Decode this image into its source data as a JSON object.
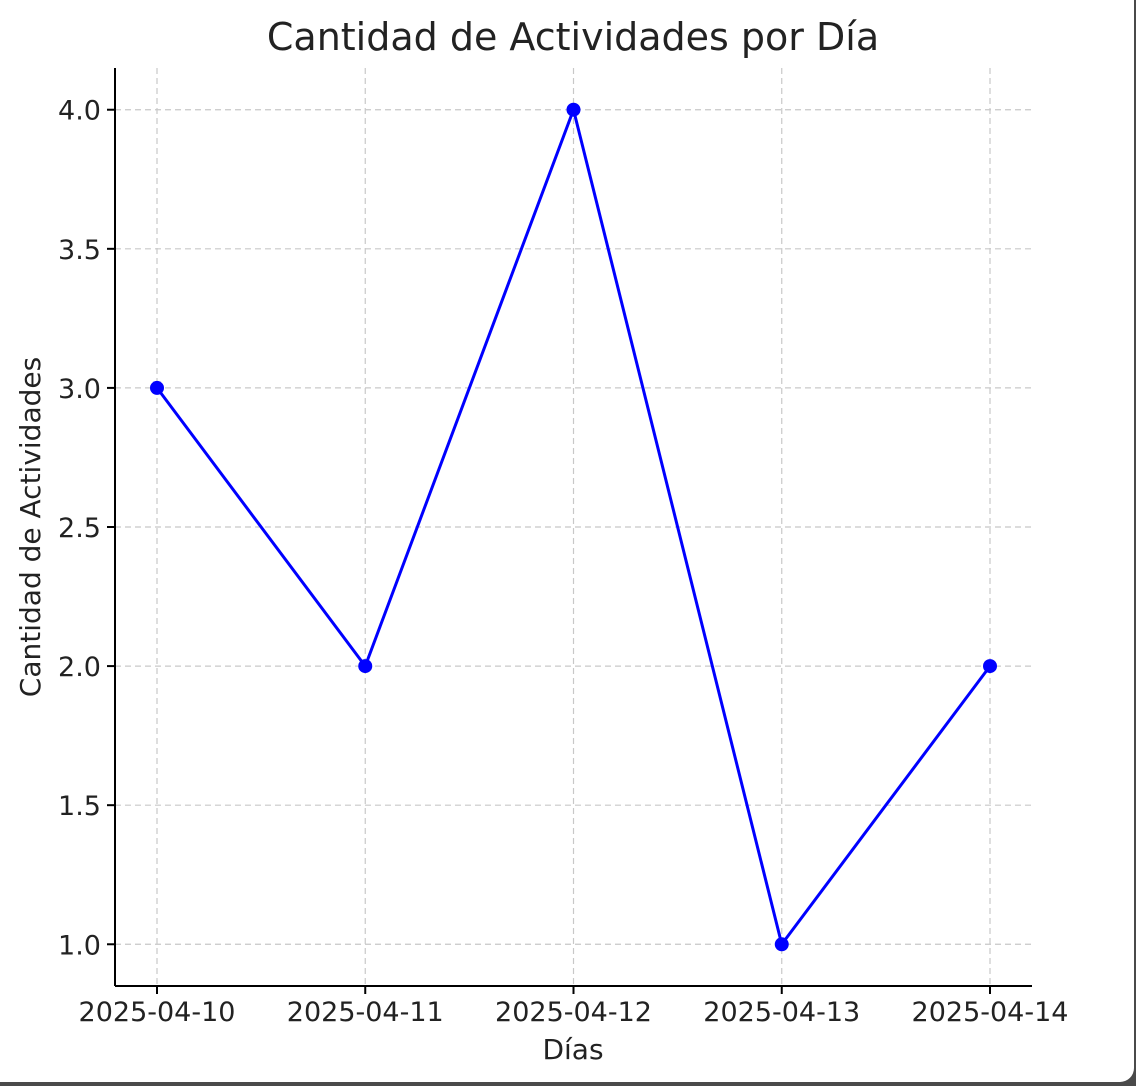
{
  "chart_data": {
    "type": "line",
    "title": "Cantidad de Actividades por Día",
    "xlabel": "Días",
    "ylabel": "Cantidad de Actividades",
    "categories": [
      "2025-04-10",
      "2025-04-11",
      "2025-04-12",
      "2025-04-13",
      "2025-04-14"
    ],
    "values": [
      3,
      2,
      4,
      1,
      2
    ],
    "yticks": [
      "1.0",
      "1.5",
      "2.0",
      "2.5",
      "3.0",
      "3.5",
      "4.0"
    ],
    "ylim": [
      0.85,
      4.15
    ],
    "grid": true,
    "line_color": "#0000ff",
    "marker": "circle"
  }
}
